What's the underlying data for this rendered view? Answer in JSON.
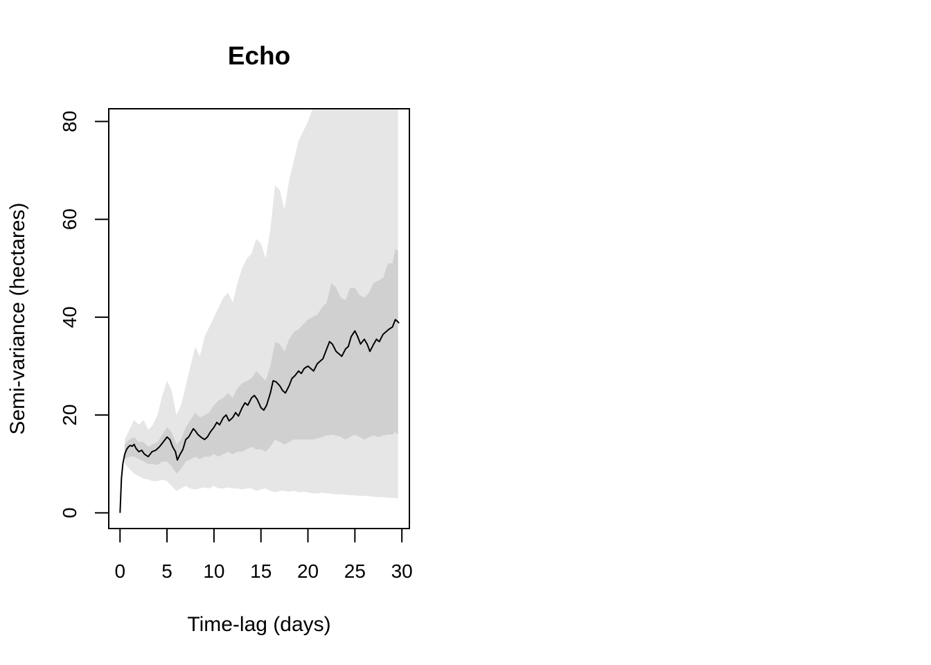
{
  "chart_data": {
    "type": "line",
    "title": "Echo",
    "xlabel": "Time-lag (days)",
    "ylabel": "Semi-variance (hectares)",
    "xlim": [
      -1.2,
      30.8
    ],
    "ylim": [
      -3.2,
      82.6
    ],
    "x_ticks": [
      0,
      5,
      10,
      15,
      20,
      25,
      30
    ],
    "y_ticks": [
      0,
      20,
      40,
      60,
      80
    ],
    "grid": false,
    "legend": "none",
    "colors": {
      "outer_band": "#e6e6e6",
      "inner_band": "#d0d0d0",
      "line": "#000000"
    },
    "series": [
      {
        "values": {
          "x": [
            0,
            0.15,
            0.3,
            0.5,
            0.7,
            0.9,
            1.1,
            1.3,
            1.5,
            1.7,
            2,
            2.3,
            2.6,
            3,
            3.4,
            3.8,
            4.2,
            4.6,
            5,
            5.3,
            5.6,
            5.9,
            6.1,
            6.4,
            6.7,
            7,
            7.3,
            7.6,
            7.8,
            8,
            8.3,
            8.6,
            9,
            9.3,
            9.6,
            10,
            10.3,
            10.6,
            11,
            11.3,
            11.6,
            12,
            12.3,
            12.6,
            13,
            13.3,
            13.6,
            14,
            14.3,
            14.6,
            15,
            15.3,
            15.6,
            16,
            16.3,
            16.6,
            17,
            17.3,
            17.6,
            18,
            18.3,
            18.6,
            19,
            19.3,
            19.6,
            20,
            20.3,
            20.6,
            21,
            21.3,
            21.6,
            22,
            22.3,
            22.6,
            23,
            23.3,
            23.6,
            24,
            24.3,
            24.6,
            25,
            25.3,
            25.6,
            26,
            26.3,
            26.6,
            27,
            27.3,
            27.6,
            28,
            28.3,
            28.6,
            29,
            29.3,
            29.5,
            29.7
          ],
          "y": [
            0,
            7,
            10,
            12,
            13,
            13.5,
            13.8,
            13.6,
            14,
            13.2,
            12.5,
            12.8,
            12,
            11.5,
            12.5,
            12.8,
            13.5,
            14.5,
            15.5,
            15,
            13.5,
            12.5,
            10.8,
            12,
            13,
            15,
            15.5,
            16.5,
            17.2,
            16.8,
            16,
            15.5,
            15,
            15.5,
            16.5,
            17.5,
            18.5,
            18,
            19.5,
            20,
            18.8,
            19.5,
            20.5,
            19.8,
            21.5,
            22.5,
            22,
            23.5,
            24,
            23.2,
            21.5,
            21,
            22,
            24.5,
            27,
            26.8,
            26,
            25,
            24.5,
            26,
            27.5,
            28,
            29,
            28.5,
            29.5,
            30,
            29.5,
            29,
            30.5,
            31,
            31.5,
            33.5,
            35,
            34.5,
            33,
            32.5,
            32,
            33.5,
            34,
            36,
            37.2,
            36,
            34.5,
            35.5,
            34.5,
            33,
            34.5,
            35.5,
            35,
            36.5,
            37,
            37.5,
            38,
            39.5,
            39.2,
            38.8
          ]
        }
      }
    ],
    "bands": [
      {
        "level": "outer",
        "x": [
          0.5,
          1,
          1.5,
          2,
          2.5,
          3,
          3.5,
          4,
          4.5,
          5,
          5.5,
          6,
          6.5,
          7,
          7.5,
          8,
          8.5,
          9,
          9.5,
          10,
          10.5,
          11,
          11.5,
          12,
          12.5,
          13,
          13.5,
          14,
          14.5,
          15,
          15.5,
          16,
          16.5,
          17,
          17.5,
          18,
          18.5,
          19,
          19.5,
          20,
          20.5,
          21,
          21.5,
          22,
          22.5,
          23,
          23.5,
          24,
          24.5,
          25,
          25.5,
          26,
          26.5,
          27,
          27.5,
          28,
          28.5,
          29,
          29.3,
          29.6
        ],
        "upper": [
          15,
          17,
          19,
          18,
          19,
          17,
          18,
          20,
          24,
          27,
          25,
          20,
          22,
          26,
          30,
          34,
          32,
          36,
          38,
          40,
          42,
          44,
          45,
          43,
          47,
          50,
          52,
          53,
          56,
          55,
          52,
          58,
          67,
          66,
          62,
          68,
          72,
          76,
          78,
          80,
          82.6,
          82.6,
          82.6,
          82.6,
          82.6,
          82.6,
          82.6,
          82.6,
          82.6,
          82.6,
          82.6,
          82.6,
          82.6,
          82.6,
          82.6,
          82.6,
          82.6,
          82.6,
          82.6,
          82.6
        ],
        "lower": [
          10,
          9,
          8,
          7.5,
          7,
          6.8,
          6.5,
          6.5,
          6.8,
          6.5,
          5.5,
          4.5,
          5,
          5.5,
          5,
          4.8,
          5,
          5.2,
          5,
          5.5,
          5,
          5,
          5.2,
          5,
          5,
          4.8,
          5,
          5,
          4.5,
          4.8,
          5,
          4.5,
          4.2,
          4.5,
          4.5,
          4.3,
          4.5,
          4.2,
          4.3,
          4.2,
          4,
          4,
          4.1,
          4,
          3.9,
          3.8,
          3.8,
          3.7,
          3.6,
          3.6,
          3.5,
          3.5,
          3.4,
          3.3,
          3.2,
          3.2,
          3.1,
          3.1,
          3,
          3
        ]
      },
      {
        "level": "inner",
        "x": [
          0.5,
          1,
          1.5,
          2,
          2.5,
          3,
          3.5,
          4,
          4.5,
          5,
          5.5,
          6,
          6.5,
          7,
          7.5,
          8,
          8.5,
          9,
          9.5,
          10,
          10.5,
          11,
          11.5,
          12,
          12.5,
          13,
          13.5,
          14,
          14.5,
          15,
          15.5,
          16,
          16.5,
          17,
          17.5,
          18,
          18.5,
          19,
          19.5,
          20,
          20.5,
          21,
          21.5,
          22,
          22.5,
          23,
          23.5,
          24,
          24.5,
          25,
          25.5,
          26,
          26.5,
          27,
          27.5,
          28,
          28.5,
          29,
          29.3,
          29.6
        ],
        "upper": [
          14,
          15,
          15.5,
          14.5,
          14.5,
          13.5,
          14,
          14.5,
          16,
          17.5,
          16.5,
          14,
          15,
          17.5,
          19,
          20.5,
          19.5,
          20,
          20.5,
          22,
          23,
          23.5,
          24.5,
          23.5,
          25.5,
          26.5,
          27,
          27.5,
          29,
          28,
          27,
          30,
          35,
          34.5,
          33,
          35.5,
          37,
          37.5,
          38.5,
          39.5,
          40,
          40.5,
          42,
          43,
          47,
          46,
          44,
          43.5,
          46,
          46,
          44.5,
          44,
          45,
          47,
          47.5,
          48,
          51,
          51,
          54,
          53.5
        ],
        "lower": [
          11,
          11.5,
          11.5,
          11,
          10.5,
          10,
          10,
          9.8,
          10.5,
          10.5,
          9.5,
          8,
          9,
          10.5,
          11,
          11.5,
          11,
          11.5,
          11.5,
          12,
          11.5,
          12,
          12.5,
          12,
          12.5,
          12.5,
          13,
          13.5,
          13,
          13,
          12.5,
          13.5,
          15,
          14.5,
          14,
          14.5,
          15,
          15,
          15,
          15,
          15,
          15.2,
          15.5,
          15.8,
          16,
          15.8,
          15.5,
          15,
          15.5,
          16,
          15.5,
          15,
          15.5,
          15.8,
          15.5,
          15.8,
          16,
          16,
          16.5,
          16
        ]
      }
    ]
  }
}
